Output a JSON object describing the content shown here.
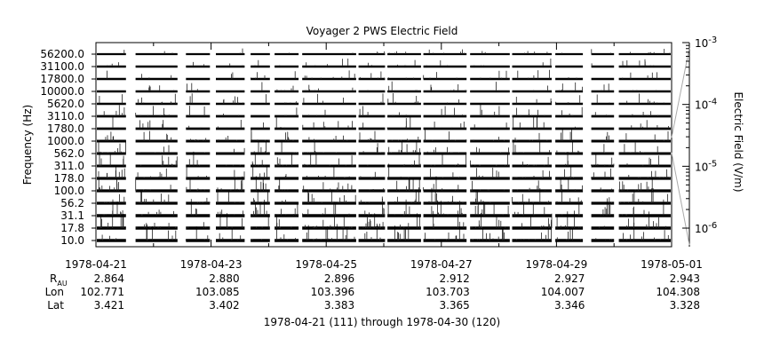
{
  "chart_data": {
    "type": "line",
    "title": "Voyager 2 PWS Electric Field",
    "ylabel": "Frequency (Hz)",
    "y2label": "Electric Field (V/m)",
    "channels": [
      "10.0",
      "17.8",
      "31.1",
      "56.2",
      "100.0",
      "178.0",
      "311.0",
      "562.0",
      "1000.0",
      "1780.0",
      "3110.0",
      "5620.0",
      "10000.0",
      "17800.0",
      "31100.0",
      "56200.0"
    ],
    "channel_scale": "log",
    "channel_range_hz": [
      10.0,
      56200.0
    ],
    "x_ticks": [
      "1978-04-21",
      "1978-04-23",
      "1978-04-25",
      "1978-04-27",
      "1978-04-29",
      "1978-05-01"
    ],
    "x_range": [
      "1978-04-21",
      "1978-05-01"
    ],
    "x_minor_ticks_per_day": 1,
    "data_gaps": [
      [
        "1978-04-21T12:30",
        "1978-04-21T16:30"
      ],
      [
        "1978-04-22T10:00",
        "1978-04-22T13:30"
      ],
      [
        "1978-04-22T23:30",
        "1978-04-23T02:00"
      ],
      [
        "1978-04-23T14:00",
        "1978-04-23T16:30"
      ],
      [
        "1978-04-24T00:30",
        "1978-04-24T02:30"
      ],
      [
        "1978-04-24T12:30",
        "1978-04-24T14:00"
      ],
      [
        "1978-04-25T12:30",
        "1978-04-25T13:30"
      ],
      [
        "1978-04-26T00:30",
        "1978-04-26T01:30"
      ],
      [
        "1978-04-26T15:30",
        "1978-04-26T16:30"
      ],
      [
        "1978-04-27T10:30",
        "1978-04-27T12:00"
      ],
      [
        "1978-04-28T04:30",
        "1978-04-28T05:30"
      ],
      [
        "1978-04-28T22:00",
        "1978-04-28T23:30"
      ],
      [
        "1978-04-29T11:00",
        "1978-04-29T14:30"
      ],
      [
        "1978-04-30T00:00",
        "1978-04-30T02:00"
      ]
    ],
    "colorbar": {
      "scale": "log",
      "range": [
        5e-07,
        0.001
      ],
      "tick_labels": [
        {
          "value": 0.001,
          "mant": "10",
          "exp": "-3"
        },
        {
          "value": 0.0001,
          "mant": "10",
          "exp": "-4"
        },
        {
          "value": 1e-05,
          "mant": "10",
          "exp": "-5"
        },
        {
          "value": 1e-06,
          "mant": "10",
          "exp": "-6"
        }
      ]
    },
    "ephemeris": {
      "row_labels": {
        "r": "R",
        "r_sub": "AU",
        "lon": "Lon",
        "lat": "Lat"
      },
      "columns": [
        {
          "date": "1978-04-21",
          "r": "2.864",
          "lon": "102.771",
          "lat": "3.421"
        },
        {
          "date": "1978-04-23",
          "r": "2.880",
          "lon": "103.085",
          "lat": "3.402"
        },
        {
          "date": "1978-04-25",
          "r": "2.896",
          "lon": "103.396",
          "lat": "3.383"
        },
        {
          "date": "1978-04-27",
          "r": "2.912",
          "lon": "103.703",
          "lat": "3.365"
        },
        {
          "date": "1978-04-29",
          "r": "2.927",
          "lon": "104.007",
          "lat": "3.346"
        },
        {
          "date": "1978-05-01",
          "r": "2.943",
          "lon": "104.308",
          "lat": "3.328"
        }
      ]
    },
    "footer": "1978-04-21 (111) through 1978-04-30 (120)"
  }
}
